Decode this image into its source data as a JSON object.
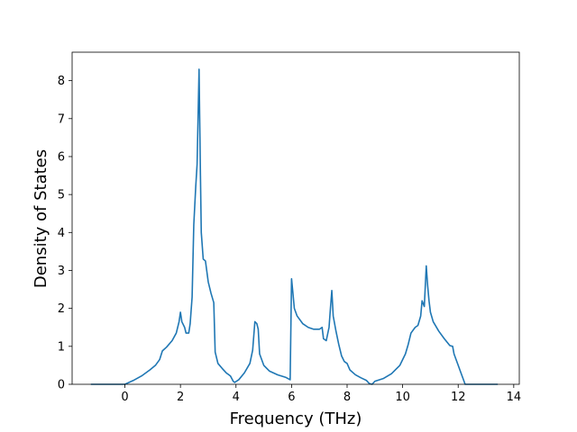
{
  "chart_data": {
    "type": "line",
    "title": "",
    "xlabel": "Frequency (THz)",
    "ylabel": "Density of States",
    "xlim": [
      -1.9,
      14.2
    ],
    "ylim": [
      0,
      8.75
    ],
    "xticks": [
      0,
      2,
      4,
      6,
      8,
      10,
      12,
      14
    ],
    "yticks": [
      0,
      1,
      2,
      3,
      4,
      5,
      6,
      7,
      8
    ],
    "grid": false,
    "legend": "none",
    "series": [
      {
        "color": "#1f77b4",
        "points": [
          [
            -1.2,
            0.0
          ],
          [
            0.0,
            0.0
          ],
          [
            0.3,
            0.1
          ],
          [
            0.6,
            0.22
          ],
          [
            0.9,
            0.38
          ],
          [
            1.1,
            0.5
          ],
          [
            1.25,
            0.65
          ],
          [
            1.35,
            0.88
          ],
          [
            1.5,
            0.98
          ],
          [
            1.7,
            1.15
          ],
          [
            1.85,
            1.35
          ],
          [
            1.95,
            1.65
          ],
          [
            2.0,
            1.9
          ],
          [
            2.05,
            1.65
          ],
          [
            2.15,
            1.5
          ],
          [
            2.2,
            1.35
          ],
          [
            2.3,
            1.35
          ],
          [
            2.35,
            1.6
          ],
          [
            2.42,
            2.3
          ],
          [
            2.48,
            4.2
          ],
          [
            2.55,
            5.2
          ],
          [
            2.6,
            5.8
          ],
          [
            2.67,
            8.3
          ],
          [
            2.72,
            5.5
          ],
          [
            2.75,
            4.0
          ],
          [
            2.82,
            3.3
          ],
          [
            2.9,
            3.25
          ],
          [
            3.0,
            2.7
          ],
          [
            3.1,
            2.4
          ],
          [
            3.2,
            2.15
          ],
          [
            3.25,
            0.85
          ],
          [
            3.35,
            0.55
          ],
          [
            3.5,
            0.42
          ],
          [
            3.65,
            0.3
          ],
          [
            3.8,
            0.22
          ],
          [
            3.9,
            0.08
          ],
          [
            3.95,
            0.05
          ],
          [
            4.1,
            0.12
          ],
          [
            4.3,
            0.3
          ],
          [
            4.5,
            0.55
          ],
          [
            4.6,
            0.9
          ],
          [
            4.68,
            1.65
          ],
          [
            4.75,
            1.6
          ],
          [
            4.8,
            1.45
          ],
          [
            4.85,
            0.8
          ],
          [
            5.0,
            0.5
          ],
          [
            5.2,
            0.35
          ],
          [
            5.5,
            0.25
          ],
          [
            5.8,
            0.18
          ],
          [
            5.95,
            0.12
          ],
          [
            6.0,
            2.78
          ],
          [
            6.05,
            2.4
          ],
          [
            6.1,
            2.0
          ],
          [
            6.2,
            1.8
          ],
          [
            6.4,
            1.6
          ],
          [
            6.6,
            1.5
          ],
          [
            6.8,
            1.45
          ],
          [
            7.0,
            1.45
          ],
          [
            7.1,
            1.5
          ],
          [
            7.15,
            1.2
          ],
          [
            7.25,
            1.15
          ],
          [
            7.35,
            1.5
          ],
          [
            7.4,
            2.0
          ],
          [
            7.45,
            2.47
          ],
          [
            7.5,
            1.8
          ],
          [
            7.6,
            1.4
          ],
          [
            7.7,
            1.05
          ],
          [
            7.8,
            0.75
          ],
          [
            7.9,
            0.6
          ],
          [
            8.0,
            0.55
          ],
          [
            8.1,
            0.38
          ],
          [
            8.3,
            0.25
          ],
          [
            8.5,
            0.17
          ],
          [
            8.7,
            0.1
          ],
          [
            8.8,
            0.02
          ],
          [
            8.9,
            0.0
          ],
          [
            9.0,
            0.08
          ],
          [
            9.3,
            0.15
          ],
          [
            9.6,
            0.28
          ],
          [
            9.9,
            0.5
          ],
          [
            10.1,
            0.8
          ],
          [
            10.2,
            1.05
          ],
          [
            10.3,
            1.35
          ],
          [
            10.45,
            1.5
          ],
          [
            10.55,
            1.55
          ],
          [
            10.65,
            1.8
          ],
          [
            10.7,
            2.2
          ],
          [
            10.78,
            2.05
          ],
          [
            10.85,
            3.12
          ],
          [
            10.9,
            2.6
          ],
          [
            10.95,
            2.2
          ],
          [
            11.0,
            1.9
          ],
          [
            11.1,
            1.65
          ],
          [
            11.3,
            1.4
          ],
          [
            11.5,
            1.2
          ],
          [
            11.7,
            1.02
          ],
          [
            11.8,
            1.0
          ],
          [
            11.85,
            0.8
          ],
          [
            12.0,
            0.5
          ],
          [
            12.1,
            0.3
          ],
          [
            12.25,
            0.0
          ],
          [
            13.4,
            0.0
          ]
        ]
      }
    ]
  }
}
